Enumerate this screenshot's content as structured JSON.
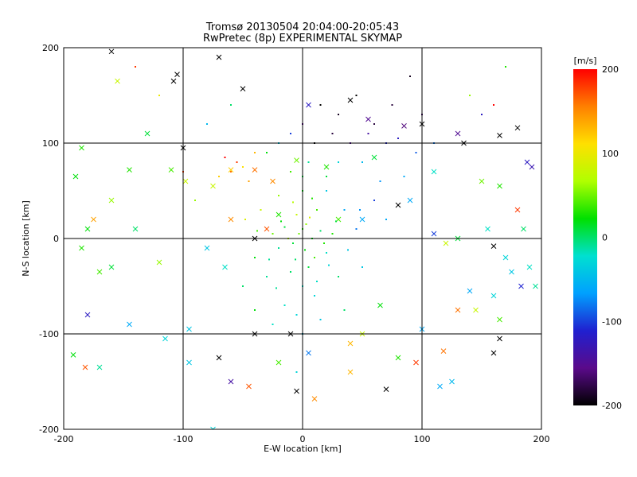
{
  "chart_data": {
    "type": "scatter",
    "title": "Tromsø 20130504 20:04:00-20:05:43",
    "subtitle": "RwPretec (8p) EXPERIMENTAL SKYMAP",
    "xlabel": "E-W location [km]",
    "ylabel": "N-S location [km]",
    "xlim": [
      -200,
      200
    ],
    "ylim": [
      -200,
      200
    ],
    "x_ticks": [
      "-200",
      "-100",
      "0",
      "100",
      "200"
    ],
    "y_ticks": [
      "-200",
      "-100",
      "0",
      "100",
      "200"
    ],
    "grid": true,
    "marker_types": [
      "dot",
      "cross"
    ],
    "colorbar": {
      "label": "[m/s]",
      "range": [
        -200,
        200
      ],
      "ticks": [
        "200",
        "100",
        "0",
        "-100",
        "-200"
      ],
      "colormap": [
        "#000000",
        "#5a0a8a",
        "#2020d0",
        "#00a0ff",
        "#00e0d0",
        "#00e000",
        "#b0ff00",
        "#ffe000",
        "#ff8000",
        "#ff0000"
      ]
    },
    "series": [
      {
        "marker": "cross",
        "points": [
          [
            -160,
            196,
            -200
          ],
          [
            -70,
            190,
            -200
          ],
          [
            -105,
            172,
            -200
          ],
          [
            -108,
            165,
            -200
          ],
          [
            -50,
            157,
            -200
          ],
          [
            5,
            140,
            -120
          ],
          [
            40,
            145,
            -200
          ],
          [
            55,
            125,
            -150
          ],
          [
            85,
            118,
            -160
          ],
          [
            100,
            120,
            -200
          ],
          [
            130,
            110,
            -150
          ],
          [
            135,
            100,
            -200
          ],
          [
            165,
            108,
            -200
          ],
          [
            180,
            116,
            -200
          ],
          [
            -100,
            95,
            -200
          ],
          [
            -130,
            110,
            10
          ],
          [
            -155,
            165,
            80
          ],
          [
            -185,
            95,
            30
          ],
          [
            -190,
            65,
            20
          ],
          [
            -145,
            72,
            30
          ],
          [
            -110,
            72,
            40
          ],
          [
            -98,
            60,
            80
          ],
          [
            -75,
            55,
            80
          ],
          [
            -60,
            72,
            120
          ],
          [
            -40,
            72,
            160
          ],
          [
            -25,
            60,
            150
          ],
          [
            -5,
            82,
            50
          ],
          [
            20,
            75,
            30
          ],
          [
            60,
            85,
            10
          ],
          [
            90,
            40,
            -60
          ],
          [
            110,
            70,
            -20
          ],
          [
            150,
            60,
            50
          ],
          [
            165,
            55,
            30
          ],
          [
            188,
            80,
            -120
          ],
          [
            192,
            75,
            -130
          ],
          [
            180,
            30,
            180
          ],
          [
            185,
            10,
            0
          ],
          [
            160,
            -8,
            -200
          ],
          [
            155,
            10,
            -20
          ],
          [
            170,
            -20,
            -30
          ],
          [
            175,
            -35,
            -40
          ],
          [
            190,
            -30,
            -20
          ],
          [
            195,
            -50,
            -10
          ],
          [
            183,
            -50,
            -110
          ],
          [
            140,
            -55,
            -60
          ],
          [
            160,
            -60,
            -30
          ],
          [
            130,
            -75,
            160
          ],
          [
            165,
            -85,
            40
          ],
          [
            145,
            -75,
            80
          ],
          [
            160,
            -120,
            -200
          ],
          [
            165,
            -105,
            -200
          ],
          [
            118,
            -118,
            160
          ],
          [
            80,
            -125,
            30
          ],
          [
            100,
            -95,
            -60
          ],
          [
            70,
            -158,
            -200
          ],
          [
            95,
            -130,
            180
          ],
          [
            115,
            -155,
            -60
          ],
          [
            125,
            -150,
            -50
          ],
          [
            40,
            -140,
            130
          ],
          [
            10,
            -168,
            150
          ],
          [
            -5,
            -160,
            -200
          ],
          [
            5,
            -120,
            -80
          ],
          [
            -20,
            -130,
            40
          ],
          [
            -40,
            -100,
            -200
          ],
          [
            -45,
            -155,
            170
          ],
          [
            -60,
            -150,
            -140
          ],
          [
            -70,
            -125,
            -200
          ],
          [
            -95,
            -130,
            -40
          ],
          [
            -115,
            -105,
            -30
          ],
          [
            -145,
            -90,
            -60
          ],
          [
            -180,
            -80,
            -120
          ],
          [
            -170,
            -135,
            -10
          ],
          [
            -182,
            -135,
            170
          ],
          [
            -192,
            -122,
            20
          ],
          [
            -170,
            -35,
            40
          ],
          [
            -160,
            -30,
            10
          ],
          [
            -180,
            10,
            20
          ],
          [
            -185,
            -10,
            30
          ],
          [
            -160,
            40,
            60
          ],
          [
            -175,
            20,
            140
          ],
          [
            -140,
            10,
            0
          ],
          [
            -120,
            -25,
            60
          ],
          [
            -95,
            -95,
            -40
          ],
          [
            -75,
            -200,
            -30
          ],
          [
            -65,
            -30,
            -20
          ],
          [
            -80,
            -10,
            -40
          ],
          [
            -60,
            20,
            150
          ],
          [
            -40,
            0,
            -200
          ],
          [
            -30,
            10,
            170
          ],
          [
            -20,
            25,
            30
          ],
          [
            30,
            20,
            40
          ],
          [
            50,
            20,
            -60
          ],
          [
            80,
            35,
            -200
          ],
          [
            110,
            5,
            -100
          ],
          [
            120,
            -5,
            80
          ],
          [
            130,
            0,
            10
          ],
          [
            50,
            -100,
            80
          ],
          [
            65,
            -70,
            20
          ],
          [
            40,
            -110,
            130
          ],
          [
            -10,
            -100,
            -200
          ]
        ]
      },
      {
        "marker": "dot",
        "points": [
          [
            0,
            10,
            30
          ],
          [
            8,
            0,
            20
          ],
          [
            -8,
            -5,
            10
          ],
          [
            3,
            15,
            60
          ],
          [
            -15,
            12,
            10
          ],
          [
            15,
            8,
            0
          ],
          [
            -5,
            25,
            80
          ],
          [
            12,
            30,
            40
          ],
          [
            -20,
            -10,
            -10
          ],
          [
            20,
            -15,
            -20
          ],
          [
            5,
            -30,
            10
          ],
          [
            -10,
            -35,
            0
          ],
          [
            25,
            5,
            30
          ],
          [
            -25,
            5,
            50
          ],
          [
            0,
            -50,
            -20
          ],
          [
            -30,
            -40,
            -10
          ],
          [
            30,
            -40,
            0
          ],
          [
            10,
            -60,
            -30
          ],
          [
            -15,
            -70,
            -20
          ],
          [
            0,
            50,
            20
          ],
          [
            20,
            50,
            -40
          ],
          [
            -20,
            45,
            60
          ],
          [
            35,
            30,
            -60
          ],
          [
            45,
            10,
            -80
          ],
          [
            -40,
            -20,
            20
          ],
          [
            -35,
            30,
            80
          ],
          [
            50,
            -30,
            -40
          ],
          [
            -50,
            -50,
            0
          ],
          [
            60,
            40,
            -100
          ],
          [
            70,
            20,
            -60
          ],
          [
            -60,
            70,
            160
          ],
          [
            -55,
            80,
            180
          ],
          [
            -70,
            65,
            120
          ],
          [
            -45,
            60,
            140
          ],
          [
            -65,
            85,
            200
          ],
          [
            -50,
            75,
            110
          ],
          [
            -40,
            90,
            130
          ],
          [
            10,
            100,
            -200
          ],
          [
            25,
            110,
            -180
          ],
          [
            40,
            100,
            -150
          ],
          [
            55,
            110,
            -140
          ],
          [
            70,
            100,
            -110
          ],
          [
            80,
            105,
            -120
          ],
          [
            60,
            120,
            -180
          ],
          [
            30,
            130,
            -190
          ],
          [
            15,
            140,
            -200
          ],
          [
            45,
            150,
            -200
          ],
          [
            75,
            140,
            -180
          ],
          [
            90,
            170,
            -190
          ],
          [
            100,
            130,
            -170
          ],
          [
            0,
            120,
            -160
          ],
          [
            -10,
            110,
            -100
          ],
          [
            -20,
            100,
            -40
          ],
          [
            -30,
            90,
            20
          ],
          [
            110,
            100,
            -80
          ],
          [
            95,
            90,
            -90
          ],
          [
            50,
            80,
            -50
          ],
          [
            30,
            80,
            -30
          ],
          [
            5,
            80,
            -10
          ],
          [
            -10,
            70,
            40
          ],
          [
            20,
            65,
            10
          ],
          [
            65,
            60,
            -70
          ],
          [
            85,
            65,
            -60
          ],
          [
            -5,
            -80,
            -30
          ],
          [
            15,
            -85,
            -40
          ],
          [
            -25,
            -90,
            -20
          ],
          [
            35,
            -75,
            0
          ],
          [
            -40,
            -75,
            20
          ],
          [
            0,
            -100,
            -50
          ],
          [
            -5,
            -140,
            -30
          ],
          [
            10,
            -20,
            40
          ],
          [
            -12,
            0,
            70
          ],
          [
            18,
            -5,
            30
          ],
          [
            -3,
            5,
            50
          ],
          [
            6,
            22,
            90
          ],
          [
            -18,
            18,
            20
          ],
          [
            28,
            18,
            10
          ],
          [
            -28,
            -22,
            -10
          ],
          [
            22,
            -28,
            -30
          ],
          [
            2,
            -12,
            20
          ],
          [
            -6,
            -22,
            0
          ],
          [
            12,
            -45,
            -20
          ],
          [
            -22,
            -52,
            -10
          ],
          [
            38,
            -12,
            -40
          ],
          [
            -38,
            8,
            40
          ],
          [
            -48,
            20,
            90
          ],
          [
            48,
            30,
            -70
          ],
          [
            -8,
            38,
            70
          ],
          [
            8,
            42,
            30
          ],
          [
            0,
            65,
            10
          ],
          [
            -100,
            70,
            180
          ],
          [
            -90,
            40,
            60
          ],
          [
            -120,
            150,
            100
          ],
          [
            -140,
            180,
            180
          ],
          [
            160,
            140,
            200
          ],
          [
            150,
            130,
            -120
          ],
          [
            170,
            180,
            30
          ],
          [
            140,
            150,
            60
          ],
          [
            -80,
            120,
            -50
          ],
          [
            -60,
            140,
            0
          ]
        ]
      }
    ]
  }
}
